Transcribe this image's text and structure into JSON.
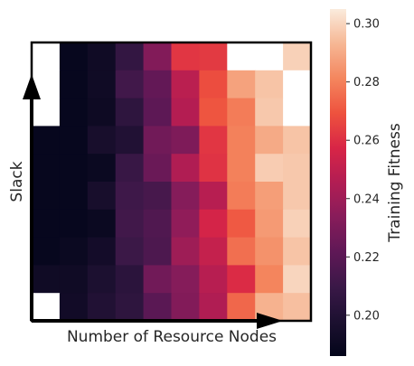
{
  "chart_data": {
    "type": "heatmap",
    "xlabel": "Number of Resource Nodes",
    "ylabel": "Slack",
    "colorbar": {
      "label": "Training Fitness",
      "vmin": 0.186,
      "vmax": 0.305,
      "ticks": [
        0.2,
        0.22,
        0.24,
        0.26,
        0.28,
        0.3
      ],
      "tick_labels": [
        "0.20",
        "0.22",
        "0.24",
        "0.26",
        "0.28",
        "0.30"
      ],
      "colormap": "rocket"
    },
    "grid": false,
    "x_ticks_shown": false,
    "y_ticks_shown": false,
    "missing_cells_color": "#ffffff",
    "frame_color": "#000000",
    "rows": 10,
    "cols": 10,
    "values": [
      [
        null,
        0.188,
        0.192,
        0.207,
        0.232,
        0.262,
        0.263,
        null,
        null,
        0.299
      ],
      [
        null,
        0.188,
        0.192,
        0.212,
        0.223,
        0.248,
        0.268,
        0.288,
        0.296,
        null
      ],
      [
        null,
        0.188,
        0.191,
        0.205,
        0.221,
        0.246,
        0.27,
        0.279,
        0.297,
        null
      ],
      [
        0.188,
        0.188,
        0.196,
        0.2,
        0.227,
        0.231,
        0.262,
        0.28,
        0.29,
        0.296
      ],
      [
        0.188,
        0.188,
        0.19,
        0.209,
        0.225,
        0.245,
        0.261,
        0.28,
        0.298,
        0.297
      ],
      [
        0.188,
        0.188,
        0.196,
        0.211,
        0.214,
        0.233,
        0.247,
        0.279,
        0.287,
        0.297
      ],
      [
        0.188,
        0.188,
        0.19,
        0.212,
        0.217,
        0.236,
        0.256,
        0.271,
        0.286,
        0.299
      ],
      [
        0.188,
        0.19,
        0.194,
        0.21,
        0.216,
        0.24,
        0.251,
        0.276,
        0.284,
        0.296
      ],
      [
        0.192,
        0.192,
        0.198,
        0.204,
        0.227,
        0.233,
        0.247,
        0.259,
        0.281,
        0.3
      ],
      [
        null,
        0.193,
        0.2,
        0.205,
        0.22,
        0.232,
        0.245,
        0.274,
        0.292,
        0.295
      ]
    ]
  }
}
